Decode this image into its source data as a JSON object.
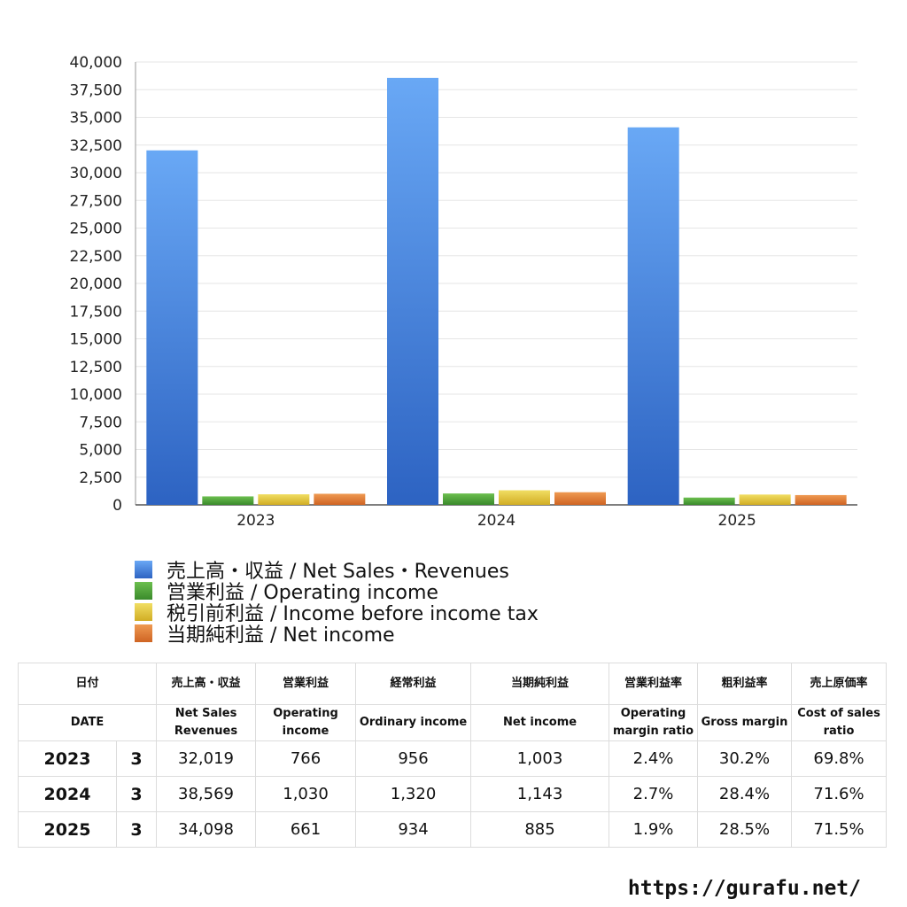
{
  "chart_data": {
    "type": "bar",
    "categories": [
      "2023",
      "2024",
      "2025"
    ],
    "series": [
      {
        "name": "売上高・収益 / Net Sales・Revenues",
        "values": [
          32019,
          38569,
          34098
        ],
        "color": "#4a8de6"
      },
      {
        "name": "営業利益 / Operating income",
        "values": [
          766,
          1030,
          661
        ],
        "color": "#4f9b3a"
      },
      {
        "name": "税引前利益 / Income before income tax",
        "values": [
          956,
          1320,
          934
        ],
        "color": "#e2c538"
      },
      {
        "name": "当期純利益 / Net income",
        "values": [
          1003,
          1143,
          885
        ],
        "color": "#e07b32"
      }
    ],
    "ylim": [
      0,
      40000
    ],
    "yticks": [
      "0",
      "2,500",
      "5,000",
      "7,500",
      "10,000",
      "12,500",
      "15,000",
      "17,500",
      "20,000",
      "22,500",
      "25,000",
      "27,500",
      "30,000",
      "32,500",
      "35,000",
      "37,500",
      "40,000"
    ],
    "grid": true,
    "legend_position": "bottom-left"
  },
  "table": {
    "header_jp": [
      "日付",
      "売上高・収益",
      "営業利益",
      "経常利益",
      "当期純利益",
      "営業利益率",
      "粗利益率",
      "売上原価率"
    ],
    "header_en": [
      "DATE",
      "Net Sales Revenues",
      "Operating income",
      "Ordinary income",
      "Net income",
      "Operating margin ratio",
      "Gross margin",
      "Cost of sales ratio"
    ],
    "rows": [
      {
        "year": "2023",
        "month": "3",
        "sales": "32,019",
        "operating": "766",
        "ordinary": "956",
        "net": "1,003",
        "op_margin": "2.4%",
        "gross_margin": "30.2%",
        "cost_ratio": "69.8%"
      },
      {
        "year": "2024",
        "month": "3",
        "sales": "38,569",
        "operating": "1,030",
        "ordinary": "1,320",
        "net": "1,143",
        "op_margin": "2.7%",
        "gross_margin": "28.4%",
        "cost_ratio": "71.6%"
      },
      {
        "year": "2025",
        "month": "3",
        "sales": "34,098",
        "operating": "661",
        "ordinary": "934",
        "net": "885",
        "op_margin": "1.9%",
        "gross_margin": "28.5%",
        "cost_ratio": "71.5%"
      }
    ]
  },
  "footer": {
    "url": "https://gurafu.net/"
  }
}
